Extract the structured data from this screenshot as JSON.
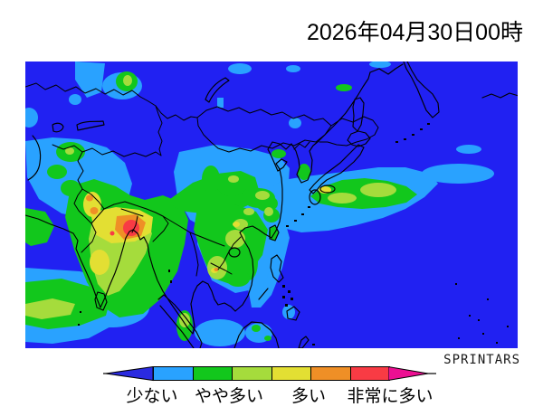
{
  "title": "2026年04月30日00時",
  "credit": "SPRINTARS",
  "palette": {
    "ocean": "#2121f2",
    "arrow_low": "#2a2ae0",
    "light_blue": "#29a2ff",
    "green": "#12c71c",
    "yellow_green": "#a5dc3c",
    "yellow": "#e3df33",
    "orange": "#ef8f26",
    "red": "#f83b44",
    "arrow_high": "#ec0f92",
    "border": "#000000"
  },
  "legend": {
    "labels": [
      "少ない",
      "やや多い",
      "多い",
      "非常に多い"
    ],
    "segments": [
      "light_blue",
      "green",
      "yellow_green",
      "yellow",
      "orange",
      "red"
    ]
  }
}
